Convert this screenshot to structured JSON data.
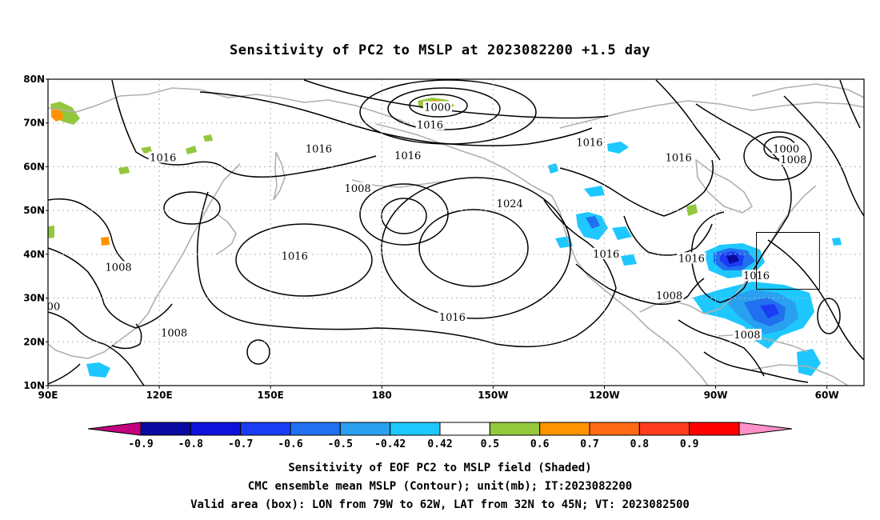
{
  "title": "Sensitivity of PC2 to MSLP at 2023082200 +1.5 day",
  "map": {
    "lon_range_deg_east": [
      90,
      310
    ],
    "lat_range": [
      10,
      80
    ],
    "lon_ticks": [
      "90E",
      "120E",
      "150E",
      "180",
      "150W",
      "120W",
      "90W",
      "60W"
    ],
    "lat_ticks": [
      "80N",
      "70N",
      "60N",
      "50N",
      "40N",
      "30N",
      "20N",
      "10N"
    ],
    "gridlines": "dotted",
    "coastline_color": "#b0b0b0",
    "contour_color": "#000000"
  },
  "contour_labels": [
    {
      "text": "1000",
      "lon": 195,
      "lat": 73.5
    },
    {
      "text": "1016",
      "lon": 193,
      "lat": 69.5
    },
    {
      "text": "1016",
      "lon": 121,
      "lat": 62
    },
    {
      "text": "1016",
      "lon": 163,
      "lat": 64
    },
    {
      "text": "1016",
      "lon": 187,
      "lat": 62.5
    },
    {
      "text": "1016",
      "lon": 236,
      "lat": 65.5
    },
    {
      "text": "1016",
      "lon": 260,
      "lat": 62
    },
    {
      "text": "1000",
      "lon": 289,
      "lat": 64
    },
    {
      "text": "1008",
      "lon": 291,
      "lat": 61.5
    },
    {
      "text": "1024",
      "lon": 214.5,
      "lat": 51.5
    },
    {
      "text": "1008",
      "lon": 173.5,
      "lat": 55
    },
    {
      "text": "1016",
      "lon": 156.5,
      "lat": 39.5
    },
    {
      "text": "1008",
      "lon": 109,
      "lat": 37
    },
    {
      "text": "1016",
      "lon": 240.5,
      "lat": 40
    },
    {
      "text": "1016",
      "lon": 263.5,
      "lat": 39
    },
    {
      "text": "1008",
      "lon": 257.5,
      "lat": 30.5
    },
    {
      "text": "1016",
      "lon": 281,
      "lat": 35
    },
    {
      "text": "1016",
      "lon": 199,
      "lat": 25.5
    },
    {
      "text": "1008",
      "lon": 124,
      "lat": 22
    },
    {
      "text": "1008",
      "lon": 278.5,
      "lat": 21.5
    },
    {
      "text": "00",
      "lon": 91.5,
      "lat": 28
    }
  ],
  "valid_box": {
    "lon_west": "79W",
    "lon_east": "62W",
    "lat_south": "32N",
    "lat_north": "45N"
  },
  "colorbar": {
    "colors": [
      "#c4007f",
      "#0a0aa0",
      "#1010dc",
      "#1a3cf5",
      "#2070f0",
      "#2aa0f0",
      "#1ec8ff",
      "#ffffff",
      "#93c83c",
      "#ff9400",
      "#ff6a14",
      "#ff3c1e",
      "#ff0000",
      "#ff90c8"
    ],
    "labels": [
      "-0.9",
      "-0.8",
      "-0.7",
      "-0.6",
      "-0.5",
      "-0.42",
      "0.42",
      "0.5",
      "0.6",
      "0.7",
      "0.8",
      "0.9"
    ]
  },
  "footer": {
    "line1": "Sensitivity of EOF PC2 to MSLP field (Shaded)",
    "line2": "CMC ensemble mean MSLP (Contour); unit(mb); IT:2023082200",
    "line3": "Valid area (box): LON from 79W to 62W, LAT from 32N to 45N; VT: 2023082500"
  }
}
